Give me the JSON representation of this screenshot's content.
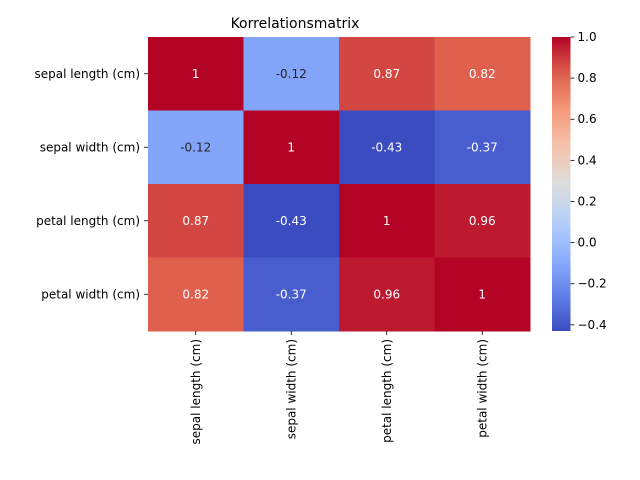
{
  "chart_data": {
    "type": "heatmap",
    "title": "Korrelationsmatrix",
    "xlabel": "",
    "ylabel": "",
    "x_categories": [
      "sepal length (cm)",
      "sepal width (cm)",
      "petal length (cm)",
      "petal width (cm)"
    ],
    "y_categories": [
      "sepal length (cm)",
      "sepal width (cm)",
      "petal length (cm)",
      "petal width (cm)"
    ],
    "values": [
      [
        1,
        -0.12,
        0.87,
        0.82
      ],
      [
        -0.12,
        1,
        -0.43,
        -0.37
      ],
      [
        0.87,
        -0.43,
        1,
        0.96
      ],
      [
        0.82,
        -0.37,
        0.96,
        1
      ]
    ],
    "labels": [
      [
        "1",
        "-0.12",
        "0.87",
        "0.82"
      ],
      [
        "-0.12",
        "1",
        "-0.43",
        "-0.37"
      ],
      [
        "0.87",
        "-0.43",
        "1",
        "0.96"
      ],
      [
        "0.82",
        "-0.37",
        "0.96",
        "1"
      ]
    ],
    "colormap": "coolwarm",
    "vmin": -0.43,
    "vmax": 1.0,
    "colorbar_ticks": [
      -0.4,
      -0.2,
      0.0,
      0.2,
      0.4,
      0.6,
      0.8,
      1.0
    ],
    "colorbar_tick_labels": [
      "−0.4",
      "−0.2",
      "0.0",
      "0.2",
      "0.4",
      "0.6",
      "0.8",
      "1.0"
    ],
    "colorbar_position": "right",
    "grid": false,
    "legend": "none"
  }
}
